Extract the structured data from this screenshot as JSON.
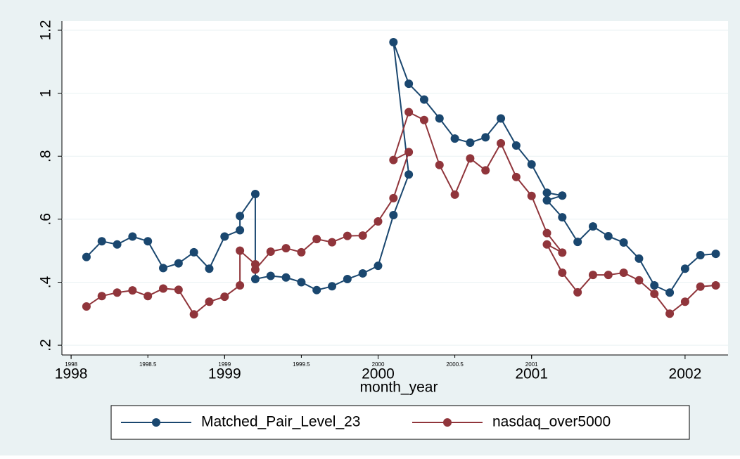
{
  "chart_data": {
    "type": "line",
    "x_label": "month_year",
    "xlim": [
      1997.94,
      2002.28
    ],
    "ylim": [
      0.169,
      1.229
    ],
    "xticks": [
      1998,
      1999,
      2000,
      2001,
      2002
    ],
    "xticks_minor": [
      1998,
      1998.5,
      1999,
      1999.5,
      2000,
      2000.5,
      2001
    ],
    "yticks": [
      {
        "value": 0.2,
        "label": ".2"
      },
      {
        "value": 0.4,
        "label": ".4"
      },
      {
        "value": 0.6,
        "label": ".6"
      },
      {
        "value": 0.8,
        "label": ".8"
      },
      1,
      {
        "value": 1.2,
        "label": "1.2"
      }
    ],
    "grid": true,
    "legend": "bottom",
    "series": [
      {
        "name": "Matched_Pair_Level_23",
        "color": "#1a476f",
        "x": [
          1998.1,
          1998.2,
          1998.3,
          1998.4,
          1998.5,
          1998.6,
          1998.7,
          1998.8,
          1998.9,
          1999.0,
          1999.1,
          1999.1,
          1999.2,
          1999.2,
          1999.3,
          1999.4,
          1999.5,
          1999.6,
          1999.7,
          1999.8,
          1999.9,
          2000.0,
          2000.1,
          2000.2,
          2000.1,
          2000.2,
          2000.3,
          2000.4,
          2000.5,
          2000.6,
          2000.7,
          2000.8,
          2000.9,
          2001.0,
          2001.1,
          2001.2,
          2001.1,
          2001.2,
          2001.3,
          2001.4,
          2001.5,
          2001.6,
          2001.7,
          2001.8,
          2001.9,
          2002.0,
          2002.1,
          2002.2
        ],
        "values": [
          0.48,
          0.53,
          0.52,
          0.545,
          0.53,
          0.445,
          0.46,
          0.495,
          0.443,
          0.545,
          0.565,
          0.61,
          0.68,
          0.41,
          0.42,
          0.415,
          0.4,
          0.375,
          0.387,
          0.41,
          0.428,
          0.452,
          0.613,
          0.742,
          1.162,
          1.03,
          0.98,
          0.92,
          0.856,
          0.843,
          0.86,
          0.92,
          0.834,
          0.774,
          0.684,
          0.675,
          0.66,
          0.606,
          0.528,
          0.577,
          0.546,
          0.526,
          0.475,
          0.39,
          0.367,
          0.443,
          0.486,
          0.49
        ]
      },
      {
        "name": "nasdaq_over5000",
        "color": "#90353b",
        "x": [
          1998.1,
          1998.2,
          1998.3,
          1998.4,
          1998.5,
          1998.6,
          1998.7,
          1998.8,
          1998.9,
          1999.0,
          1999.1,
          1999.1,
          1999.2,
          1999.2,
          1999.3,
          1999.4,
          1999.5,
          1999.6,
          1999.7,
          1999.8,
          1999.9,
          2000.0,
          2000.1,
          2000.2,
          2000.1,
          2000.2,
          2000.3,
          2000.4,
          2000.5,
          2000.6,
          2000.7,
          2000.8,
          2000.9,
          2001.0,
          2001.1,
          2001.2,
          2001.1,
          2001.2,
          2001.3,
          2001.4,
          2001.5,
          2001.6,
          2001.7,
          2001.8,
          2001.9,
          2002.0,
          2002.1,
          2002.2
        ],
        "values": [
          0.323,
          0.356,
          0.367,
          0.374,
          0.356,
          0.38,
          0.376,
          0.298,
          0.338,
          0.354,
          0.39,
          0.5,
          0.457,
          0.44,
          0.497,
          0.508,
          0.495,
          0.537,
          0.527,
          0.547,
          0.548,
          0.593,
          0.667,
          0.813,
          0.788,
          0.94,
          0.915,
          0.772,
          0.678,
          0.793,
          0.755,
          0.841,
          0.734,
          0.674,
          0.556,
          0.494,
          0.52,
          0.43,
          0.368,
          0.423,
          0.423,
          0.43,
          0.406,
          0.363,
          0.3,
          0.338,
          0.386,
          0.39
        ]
      }
    ]
  }
}
